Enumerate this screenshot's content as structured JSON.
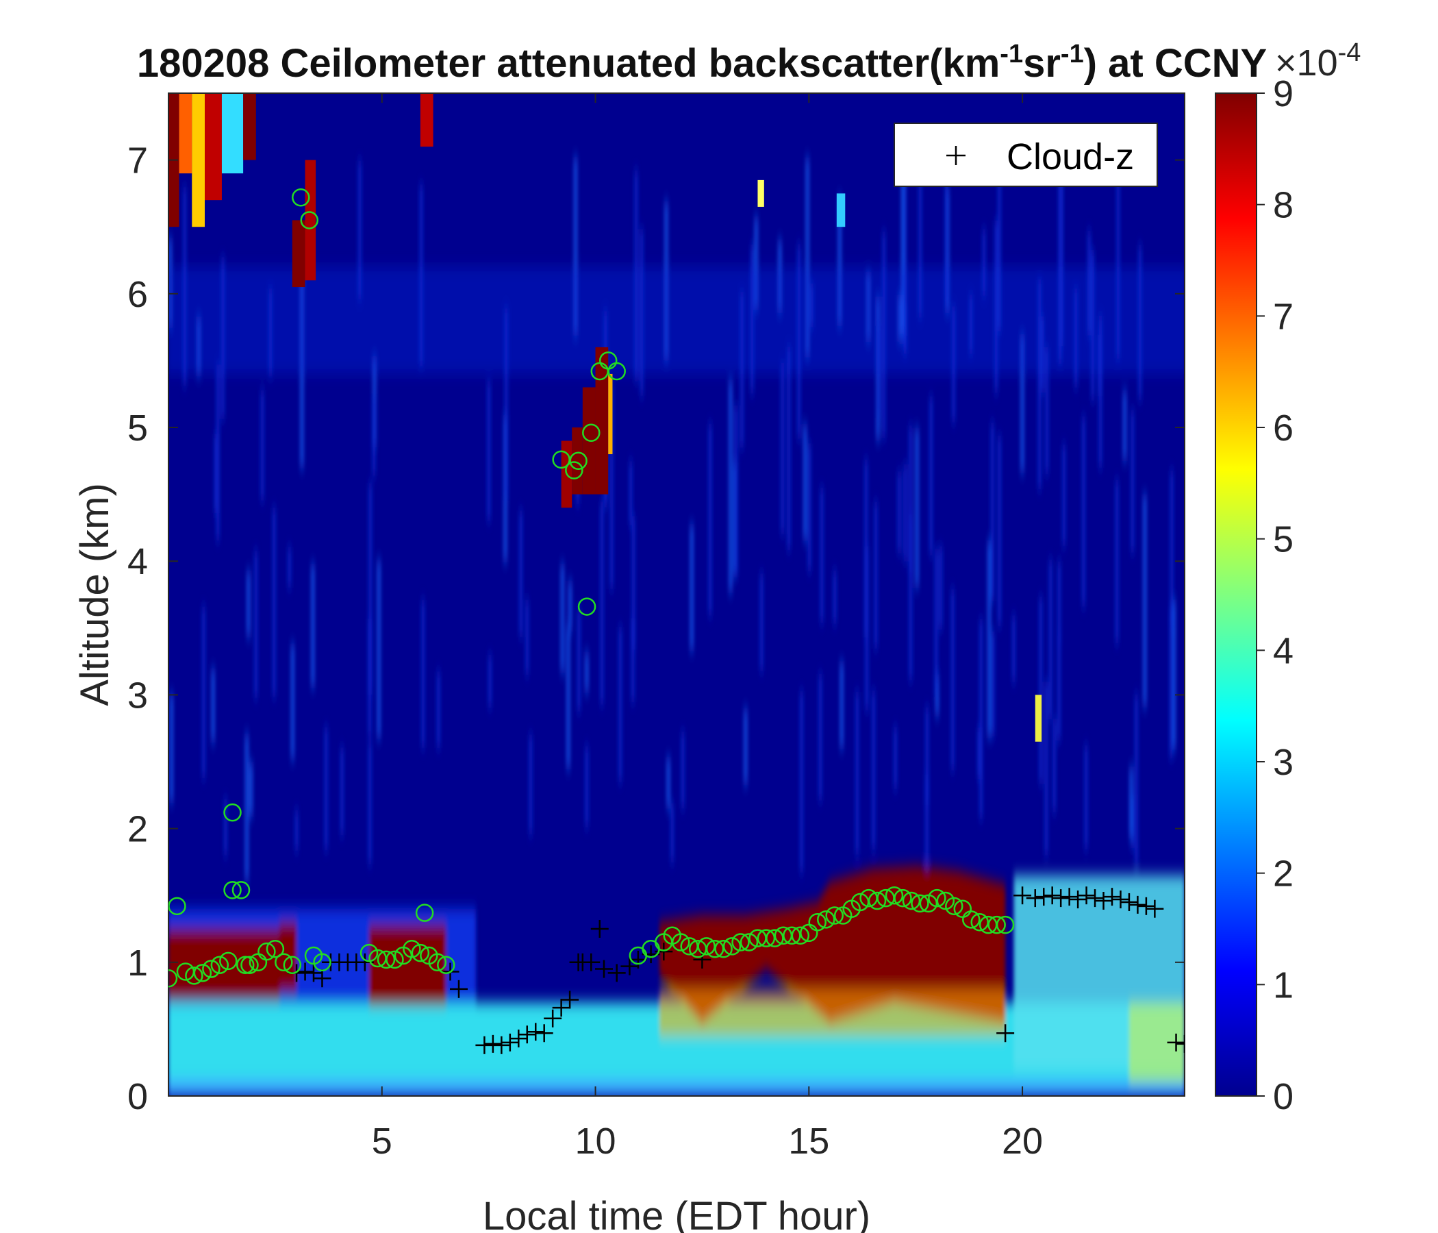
{
  "chart_data": {
    "type": "heatmap",
    "title": {
      "main": "180208 Ceilometer attenuated backscatter(km",
      "sup1": "-1",
      "mid": "sr",
      "sup2": "-1",
      "end": ") at CCNY"
    },
    "xlabel": "Local time (EDT hour)",
    "ylabel": "Altitude (km)",
    "xlim": [
      0,
      23.8
    ],
    "ylim": [
      0,
      7.5
    ],
    "xticks": [
      5,
      10,
      15,
      20
    ],
    "yticks": [
      0,
      1,
      2,
      3,
      4,
      5,
      6,
      7
    ],
    "colorbar": {
      "colormap": "jet",
      "limits": [
        0,
        9
      ],
      "ticks": [
        0,
        1,
        2,
        3,
        4,
        5,
        6,
        7,
        8,
        9
      ],
      "exponent_base": "×10",
      "exponent_power": "-4"
    },
    "legend": {
      "entries": [
        "Cloud-z"
      ],
      "position": "top-right"
    },
    "colors": {
      "cloud_marker": "#000000",
      "pbl_marker": "#22dd22",
      "background": "#00008f"
    },
    "series": [
      {
        "name": "Cloud-z",
        "marker": "+",
        "x": [
          6.6,
          6.8,
          7.4,
          7.6,
          7.8,
          8.0,
          8.2,
          8.4,
          8.6,
          8.8,
          9.0,
          9.2,
          9.4,
          9.6,
          9.7,
          9.9,
          10.1,
          10.2,
          10.5,
          10.8,
          11.0,
          11.3,
          11.6,
          12.5,
          19.6,
          20.0,
          20.3,
          20.5,
          20.7,
          20.9,
          21.1,
          21.3,
          21.5,
          21.7,
          21.9,
          22.1,
          22.3,
          22.5,
          22.7,
          22.9,
          23.1,
          23.6,
          23.8,
          3.0,
          3.2,
          3.4,
          3.6,
          3.8,
          4.0,
          4.2,
          4.4,
          4.6
        ],
        "y": [
          0.93,
          0.8,
          0.38,
          0.39,
          0.38,
          0.4,
          0.43,
          0.46,
          0.48,
          0.47,
          0.58,
          0.66,
          0.72,
          1.0,
          1.0,
          1.0,
          1.25,
          0.95,
          0.92,
          0.97,
          1.02,
          1.06,
          1.08,
          1.02,
          0.47,
          1.5,
          1.48,
          1.49,
          1.5,
          1.48,
          1.49,
          1.47,
          1.5,
          1.48,
          1.46,
          1.49,
          1.47,
          1.45,
          1.43,
          1.42,
          1.4,
          0.4,
          0.39,
          0.92,
          0.93,
          0.92,
          0.88,
          1.0,
          1.0,
          1.0,
          1.0,
          1.0
        ]
      },
      {
        "name": "",
        "marker": "o",
        "x": [
          0.0,
          0.2,
          0.4,
          0.6,
          0.8,
          1.0,
          1.2,
          1.4,
          1.5,
          1.5,
          1.7,
          1.8,
          1.9,
          2.1,
          2.3,
          2.5,
          2.7,
          2.9,
          3.1,
          3.3,
          3.4,
          3.6,
          4.7,
          4.9,
          5.1,
          5.3,
          5.5,
          5.7,
          5.9,
          6.0,
          6.1,
          6.3,
          6.5,
          9.2,
          9.5,
          9.6,
          9.8,
          9.9,
          10.1,
          10.3,
          10.5,
          11.0,
          11.3,
          11.6,
          11.8,
          12.0,
          12.2,
          12.4,
          12.6,
          12.8,
          13.0,
          13.2,
          13.4,
          13.6,
          13.8,
          14.0,
          14.2,
          14.4,
          14.6,
          14.8,
          15.0,
          15.2,
          15.4,
          15.6,
          15.8,
          16.0,
          16.2,
          16.4,
          16.6,
          16.8,
          17.0,
          17.2,
          17.4,
          17.6,
          17.8,
          18.0,
          18.2,
          18.4,
          18.6,
          18.8,
          19.0,
          19.2,
          19.4,
          19.6
        ],
        "y": [
          0.88,
          1.42,
          0.93,
          0.9,
          0.92,
          0.95,
          0.98,
          1.01,
          1.54,
          2.12,
          1.54,
          0.98,
          0.98,
          1.0,
          1.08,
          1.1,
          1.0,
          0.98,
          6.72,
          6.55,
          1.05,
          1.0,
          1.07,
          1.03,
          1.02,
          1.02,
          1.05,
          1.1,
          1.07,
          1.37,
          1.05,
          1.0,
          0.98,
          4.76,
          4.68,
          4.75,
          3.66,
          4.96,
          5.42,
          5.5,
          5.42,
          1.05,
          1.1,
          1.15,
          1.2,
          1.15,
          1.12,
          1.1,
          1.12,
          1.1,
          1.1,
          1.12,
          1.15,
          1.15,
          1.18,
          1.18,
          1.18,
          1.2,
          1.2,
          1.2,
          1.22,
          1.3,
          1.32,
          1.35,
          1.35,
          1.4,
          1.45,
          1.48,
          1.46,
          1.48,
          1.5,
          1.48,
          1.46,
          1.44,
          1.44,
          1.48,
          1.46,
          1.42,
          1.4,
          1.32,
          1.3,
          1.28,
          1.28,
          1.28
        ]
      }
    ]
  }
}
